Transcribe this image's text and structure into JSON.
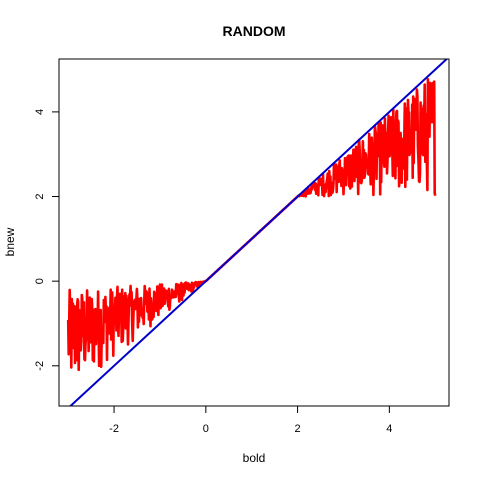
{
  "chart_data": {
    "type": "line",
    "title": "RANDOM",
    "xlabel": "bold",
    "ylabel": "bnew",
    "xlim": [
      -3.2,
      5.3
    ],
    "ylim": [
      -2.95,
      5.25
    ],
    "xticks": [
      "-2",
      "0",
      "2",
      "4"
    ],
    "yticks": [
      "-2",
      "0",
      "2",
      "4"
    ],
    "grid": false,
    "legend": "none",
    "series": [
      {
        "color": "#ff0000",
        "style": "noisy-line",
        "x_range": [
          -3.0,
          5.0
        ],
        "description_segments": [
          {
            "x": [
              -3.0,
              0.0
            ],
            "upper": [
              -0.2,
              0.0
            ],
            "lower": [
              -2.7,
              0.0
            ]
          },
          {
            "x": [
              0.0,
              2.0
            ],
            "upper": [
              0.0,
              2.0
            ],
            "lower": [
              0.0,
              2.0
            ]
          },
          {
            "x": [
              2.0,
              5.0
            ],
            "upper": [
              2.0,
              5.0
            ],
            "lower": [
              2.0,
              2.0
            ]
          }
        ]
      },
      {
        "color": "#0000cc",
        "style": "line",
        "x": [
          -3.2,
          5.3
        ],
        "y": [
          -3.2,
          5.3
        ]
      }
    ]
  }
}
